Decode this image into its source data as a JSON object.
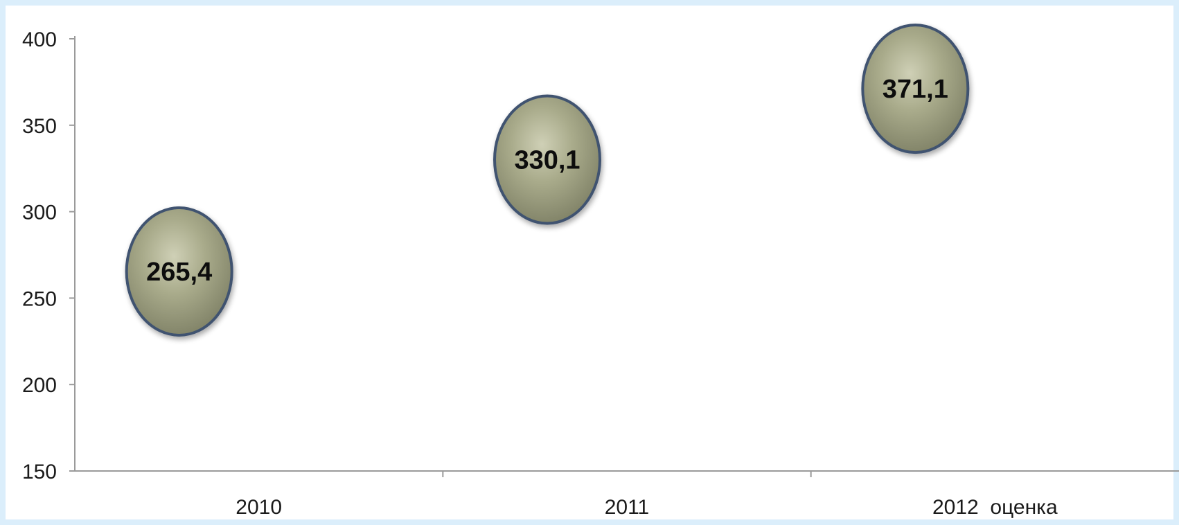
{
  "chart_data": {
    "type": "scatter",
    "title": "",
    "xlabel": "",
    "ylabel": "",
    "categories": [
      "2010",
      "2011",
      "2012  оценка"
    ],
    "values": [
      265.4,
      330.1,
      371.1
    ],
    "data_labels": [
      "265,4",
      "330,1",
      "371,1"
    ],
    "ylim": [
      150,
      400
    ],
    "yticks": [
      "150",
      "200",
      "250",
      "300",
      "350",
      "400"
    ],
    "grid": false,
    "legend": "none",
    "marker": "bubble"
  },
  "colors": {
    "background": "#ffffff",
    "frame_border": "#dbeefb",
    "axis": "#9a9a9a",
    "bubble_fill": "#a6a887",
    "bubble_fill_dark": "#8a8c70",
    "bubble_highlight": "#c7c8ac",
    "bubble_stroke": "#3f5370"
  }
}
